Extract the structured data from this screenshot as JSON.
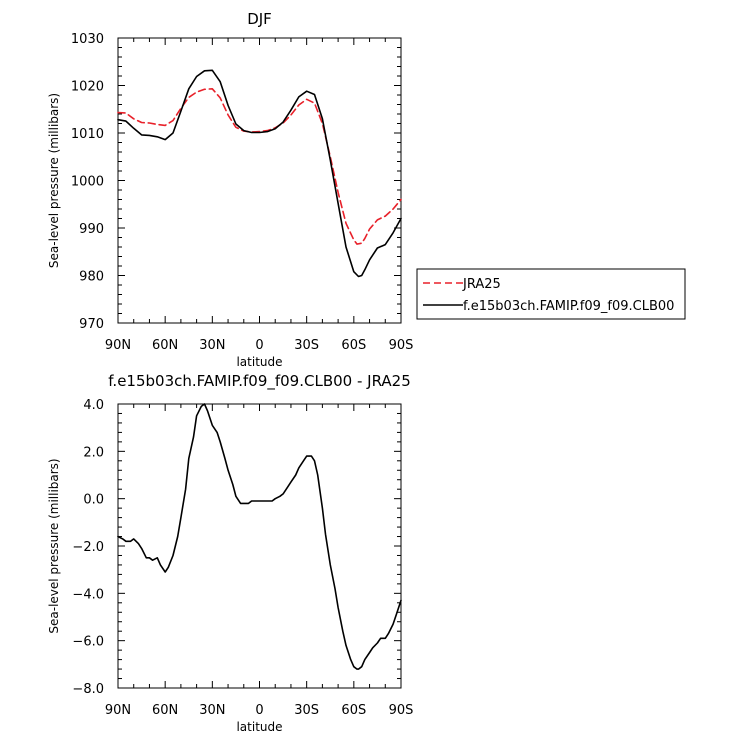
{
  "chart_data": [
    {
      "type": "line",
      "title": "DJF",
      "xlabel": "latitude",
      "ylabel": "Sea-level pressure (millibars)",
      "xlim": [
        90,
        -90
      ],
      "ylim": [
        970,
        1030
      ],
      "x_ticks": [
        90,
        60,
        30,
        0,
        -30,
        -60,
        -90
      ],
      "x_tick_labels": [
        "90N",
        "60N",
        "30N",
        "0",
        "30S",
        "60S",
        "90S"
      ],
      "y_ticks": [
        970,
        980,
        990,
        1000,
        1010,
        1020,
        1030
      ],
      "y_tick_labels": [
        "970",
        "980",
        "990",
        "1000",
        "1010",
        "1020",
        "1030"
      ],
      "grid": false,
      "legend": "outside-right",
      "series": [
        {
          "name": "JRA25",
          "color": "#e8212a",
          "dash": "dashed",
          "x": [
            90,
            85,
            80,
            75,
            70,
            65,
            60,
            55,
            50,
            45,
            40,
            35,
            30,
            25,
            20,
            15,
            10,
            5,
            0,
            -5,
            -10,
            -15,
            -20,
            -25,
            -30,
            -35,
            -40,
            -45,
            -50,
            -55,
            -60,
            -62,
            -65,
            -67,
            -70,
            -75,
            -80,
            -85,
            -90
          ],
          "y": [
            1014.3,
            1014.2,
            1013.0,
            1012.2,
            1012.1,
            1011.8,
            1011.6,
            1012.6,
            1015.2,
            1017.5,
            1018.6,
            1019.2,
            1019.3,
            1017.4,
            1013.8,
            1011.2,
            1010.4,
            1010.2,
            1010.3,
            1010.5,
            1011.1,
            1012.1,
            1013.8,
            1015.9,
            1017.1,
            1016.3,
            1012.0,
            1005.0,
            997.5,
            991.0,
            987.5,
            986.6,
            986.8,
            987.8,
            989.8,
            991.7,
            992.5,
            994.0,
            996.0
          ]
        },
        {
          "name": "f.e15b03ch.FAMIP.f09_f09.CLB00",
          "color": "#000000",
          "dash": "solid",
          "x": [
            90,
            85,
            80,
            75,
            70,
            65,
            60,
            55,
            50,
            45,
            40,
            35,
            30,
            25,
            20,
            15,
            10,
            5,
            0,
            -5,
            -10,
            -15,
            -20,
            -25,
            -30,
            -35,
            -40,
            -45,
            -50,
            -55,
            -60,
            -63,
            -65,
            -67,
            -70,
            -75,
            -80,
            -85,
            -90
          ],
          "y": [
            1012.8,
            1012.5,
            1011.0,
            1009.6,
            1009.5,
            1009.2,
            1008.6,
            1010.0,
            1014.6,
            1019.3,
            1021.9,
            1023.1,
            1023.2,
            1020.8,
            1015.8,
            1011.9,
            1010.5,
            1010.1,
            1010.1,
            1010.3,
            1010.9,
            1012.3,
            1014.8,
            1017.6,
            1018.8,
            1018.1,
            1013.0,
            1004.3,
            995.2,
            986.0,
            980.8,
            979.8,
            980.0,
            981.2,
            983.3,
            985.8,
            986.5,
            989.0,
            992.0
          ]
        }
      ]
    },
    {
      "type": "line",
      "title": "f.e15b03ch.FAMIP.f09_f09.CLB00 - JRA25",
      "xlabel": "latitude",
      "ylabel": "Sea-level pressure (millibars)",
      "xlim": [
        90,
        -90
      ],
      "ylim": [
        -8,
        4
      ],
      "x_ticks": [
        90,
        60,
        30,
        0,
        -30,
        -60,
        -90
      ],
      "x_tick_labels": [
        "90N",
        "60N",
        "30N",
        "0",
        "30S",
        "60S",
        "90S"
      ],
      "y_ticks": [
        -8,
        -6,
        -4,
        -2,
        0,
        2,
        4
      ],
      "y_tick_labels": [
        "−8.0",
        "−6.0",
        "−4.0",
        "−2.0",
        "0.0",
        "2.0",
        "4.0"
      ],
      "grid": false,
      "series": [
        {
          "color": "#000000",
          "dash": "solid",
          "x": [
            90,
            87,
            85,
            82,
            80,
            77,
            75,
            72,
            70,
            68,
            65,
            63,
            60,
            58,
            55,
            52,
            50,
            47,
            45,
            42,
            40,
            37,
            35,
            33,
            30,
            27,
            25,
            22,
            20,
            17,
            15,
            12,
            10,
            7,
            5,
            2,
            0,
            -3,
            -5,
            -8,
            -10,
            -13,
            -15,
            -18,
            -20,
            -23,
            -25,
            -28,
            -30,
            -33,
            -35,
            -37,
            -40,
            -42,
            -45,
            -48,
            -50,
            -53,
            -55,
            -58,
            -60,
            -62,
            -63,
            -65,
            -67,
            -70,
            -72,
            -75,
            -77,
            -80,
            -82,
            -85,
            -87,
            -90
          ],
          "y": [
            -1.6,
            -1.7,
            -1.8,
            -1.8,
            -1.7,
            -1.9,
            -2.1,
            -2.5,
            -2.5,
            -2.6,
            -2.5,
            -2.8,
            -3.1,
            -2.9,
            -2.4,
            -1.6,
            -0.8,
            0.4,
            1.7,
            2.6,
            3.5,
            3.9,
            4.0,
            3.7,
            3.1,
            2.8,
            2.4,
            1.7,
            1.2,
            0.6,
            0.1,
            -0.2,
            -0.2,
            -0.2,
            -0.1,
            -0.1,
            -0.1,
            -0.1,
            -0.1,
            -0.1,
            0.0,
            0.1,
            0.2,
            0.5,
            0.7,
            1.0,
            1.3,
            1.6,
            1.8,
            1.8,
            1.6,
            1.0,
            -0.4,
            -1.5,
            -2.8,
            -3.8,
            -4.6,
            -5.6,
            -6.2,
            -6.8,
            -7.1,
            -7.2,
            -7.2,
            -7.1,
            -6.8,
            -6.5,
            -6.3,
            -6.1,
            -5.9,
            -5.9,
            -5.7,
            -5.3,
            -4.9,
            -4.3
          ]
        }
      ]
    }
  ]
}
